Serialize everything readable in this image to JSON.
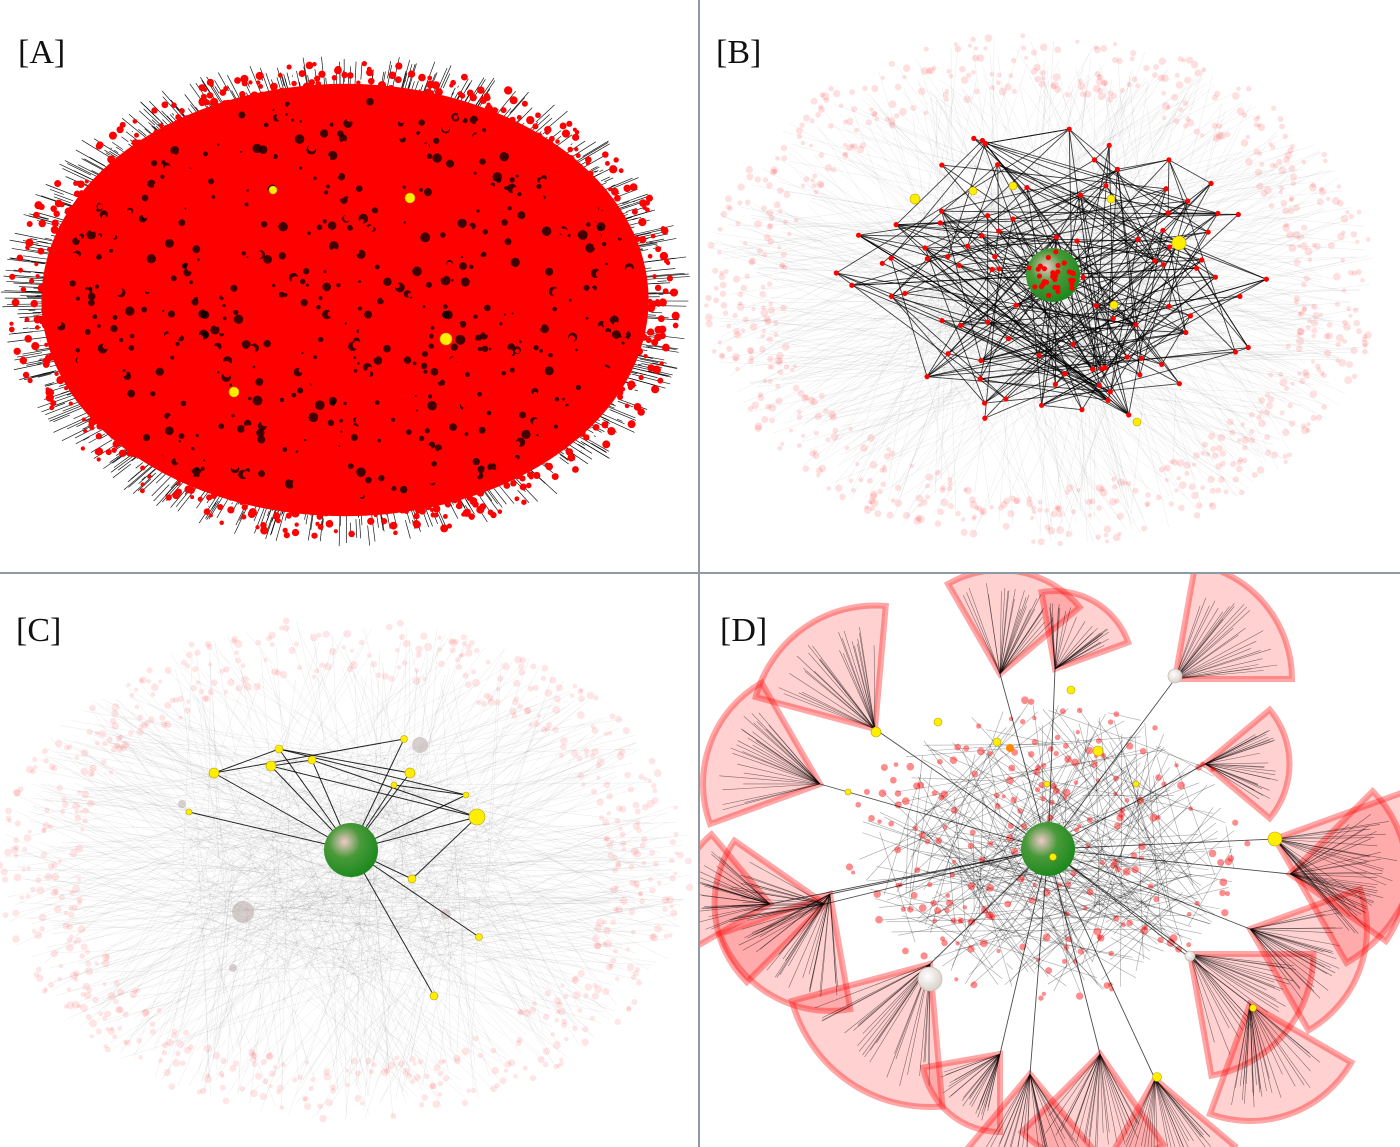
{
  "figure": {
    "panels": [
      {
        "id": "A",
        "label": "[A]",
        "style": "dense"
      },
      {
        "id": "B",
        "label": "[B]",
        "style": "backbone"
      },
      {
        "id": "C",
        "label": "[C]",
        "style": "hubs"
      },
      {
        "id": "D",
        "label": "[D]",
        "style": "clusters"
      }
    ],
    "colors": {
      "node": "#ff0000",
      "edge": "#000000",
      "highlight_node": "#ffee00",
      "central_hub": "#1e8a1e",
      "divider": "#8f9aa6",
      "background": "#ffffff"
    }
  }
}
